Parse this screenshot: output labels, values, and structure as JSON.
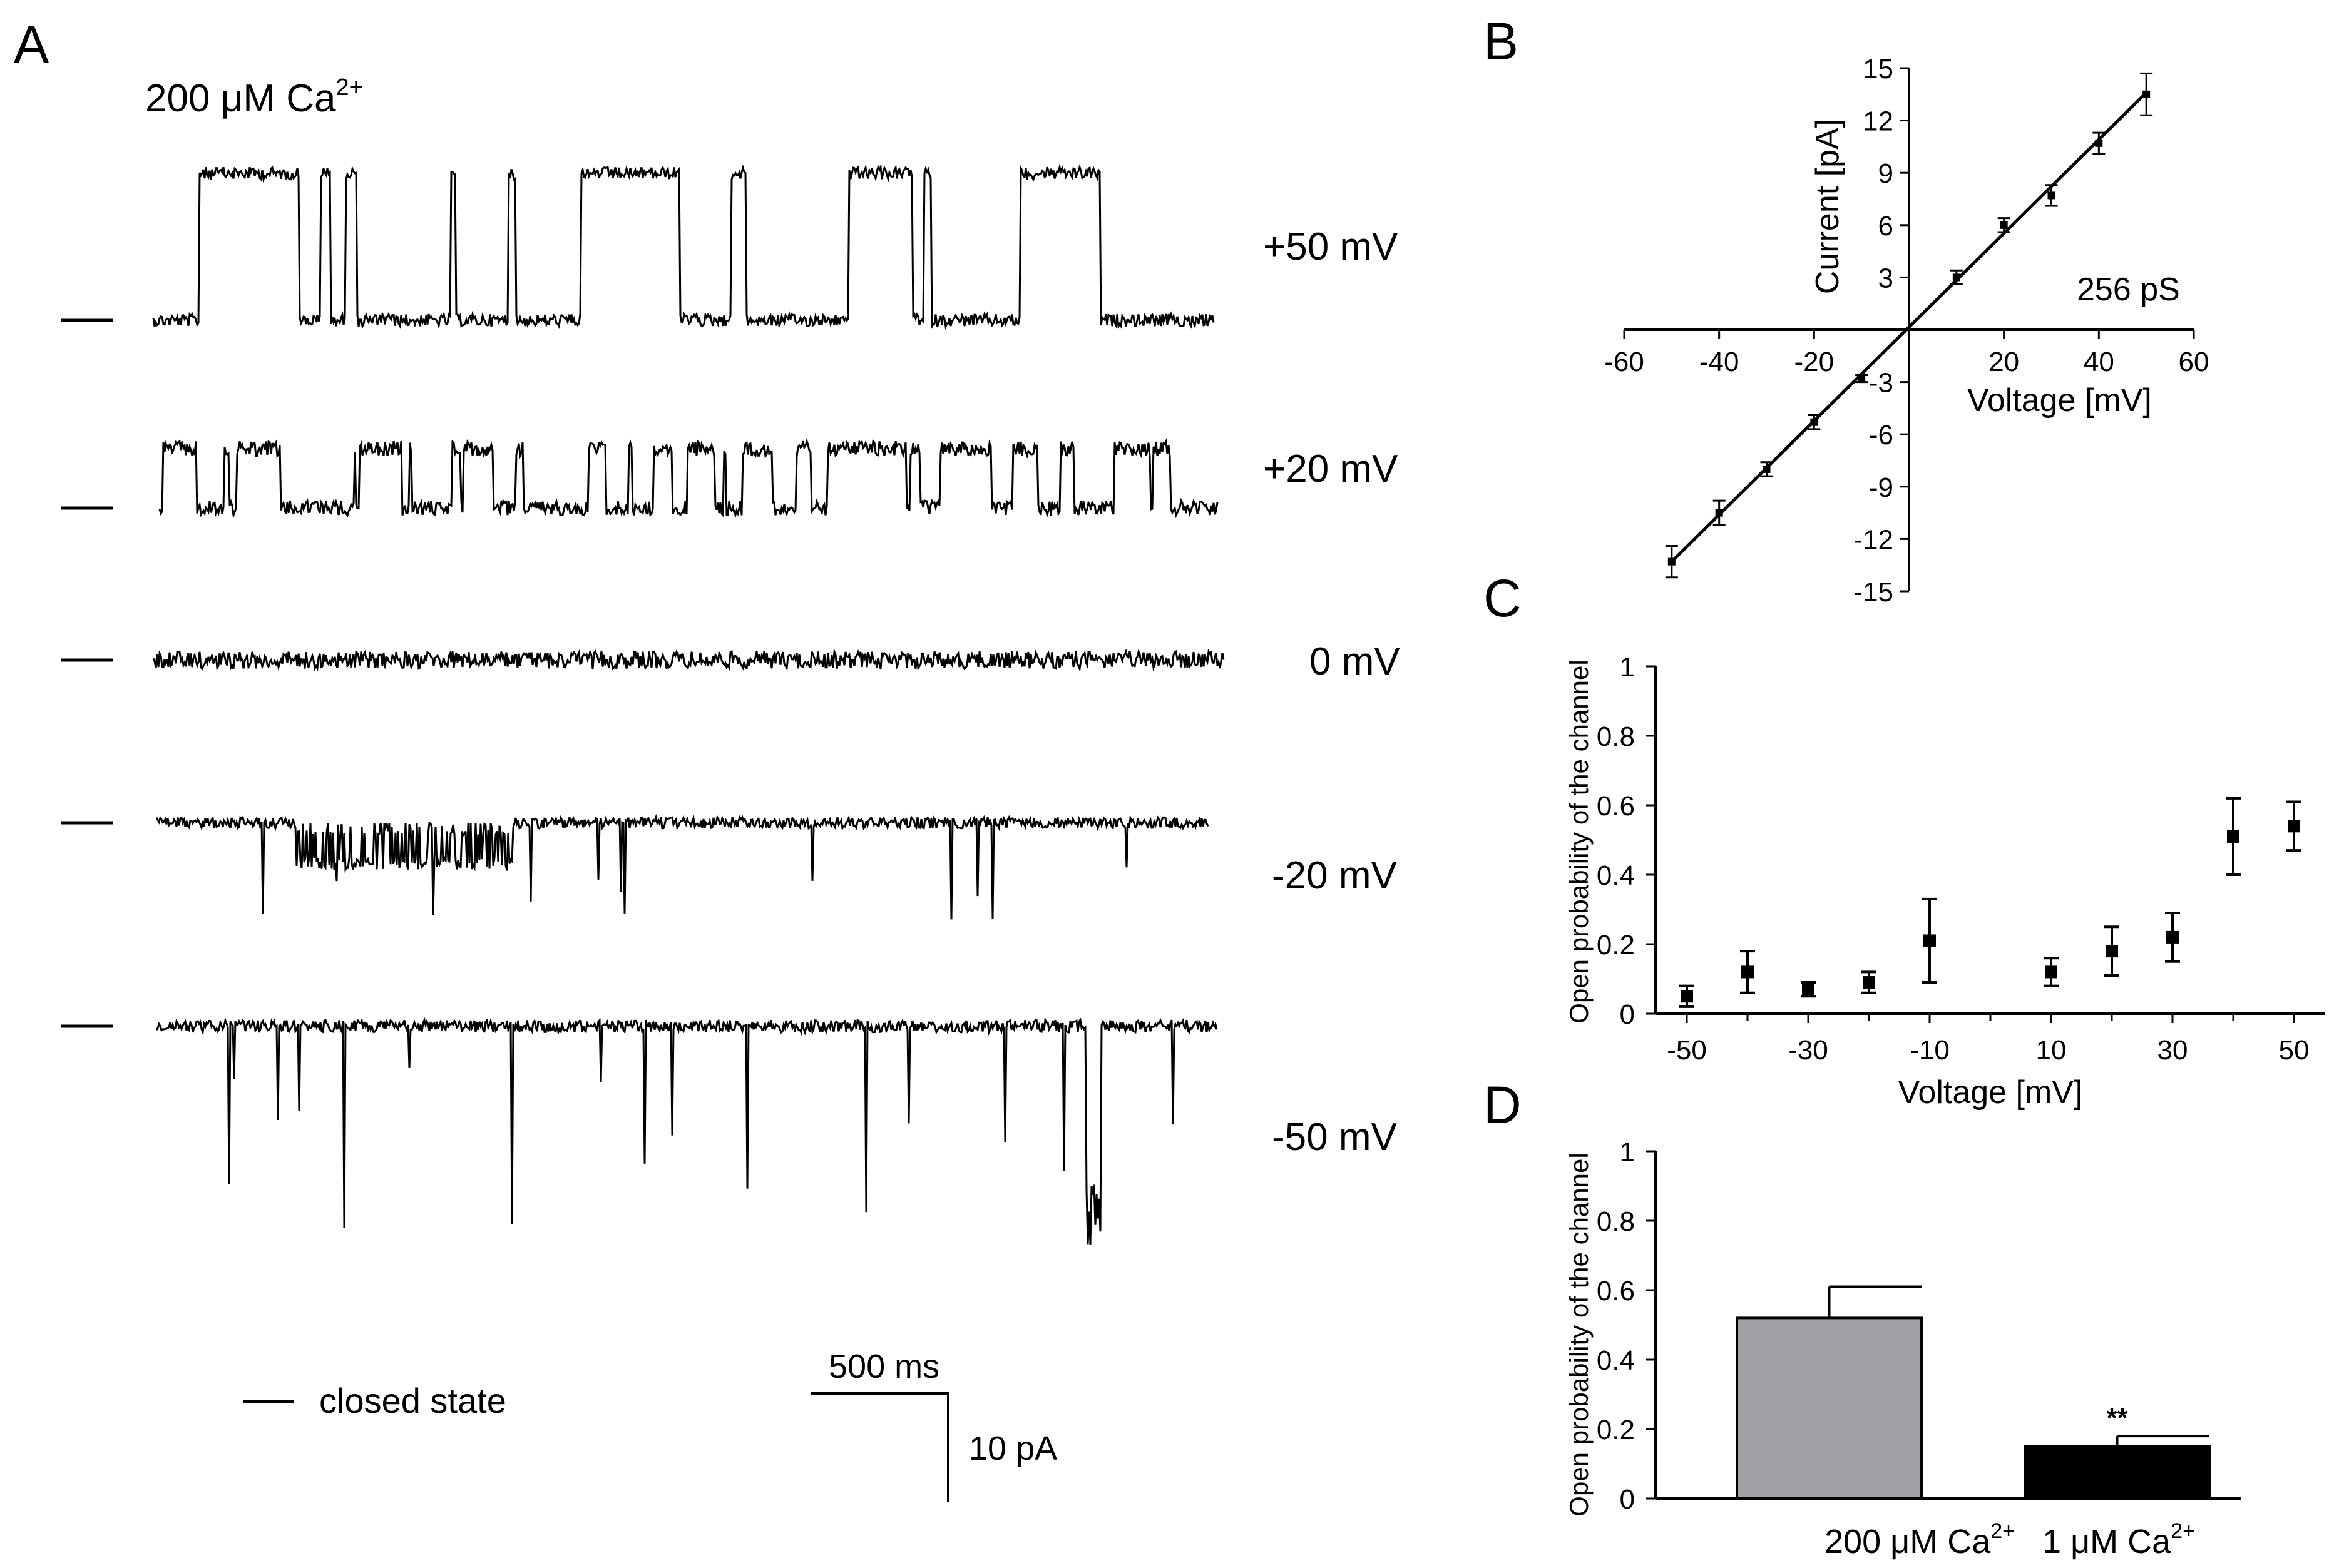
{
  "panel_letters": {
    "a": "A",
    "b": "B",
    "c": "C",
    "d": "D"
  },
  "colors": {
    "ink": "#000000",
    "bar_200uM": "#a0a0a4",
    "bar_1uM": "#000000"
  },
  "chart_data": [
    {
      "panel": "A",
      "type": "line",
      "condition": {
        "prefix": "200 μM Ca",
        "sup": "2+"
      },
      "traces": [
        {
          "voltage_label": "+50 mV",
          "pattern": "openings upward, frequent bursts"
        },
        {
          "voltage_label": "+20 mV",
          "pattern": "openings upward, flickering"
        },
        {
          "voltage_label": "0 mV",
          "pattern": "baseline noise only"
        },
        {
          "voltage_label": "-20 mV",
          "pattern": "sparse downward openings"
        },
        {
          "voltage_label": "-50 mV",
          "pattern": "brief downward openings"
        }
      ],
      "legend": {
        "closed_state": "closed state"
      },
      "scale_bar": {
        "time": "500 ms",
        "current": "10 pA"
      }
    },
    {
      "panel": "B",
      "type": "scatter",
      "xlabel": "Voltage [mV]",
      "ylabel": "Current [pA]",
      "x_ticks": [
        -60,
        -40,
        -20,
        20,
        40,
        60
      ],
      "y_ticks": [
        15,
        12,
        9,
        6,
        3,
        -3,
        -6,
        -9,
        -12,
        -15
      ],
      "xlim": [
        -60,
        60
      ],
      "ylim": [
        -15,
        15
      ],
      "annotation": "256 pS",
      "points": [
        {
          "x": -50,
          "y": -13.3,
          "err": 0.9
        },
        {
          "x": -40,
          "y": -10.5,
          "err": 0.7
        },
        {
          "x": -30,
          "y": -8.0,
          "err": 0.4
        },
        {
          "x": -20,
          "y": -5.3,
          "err": 0.4
        },
        {
          "x": -10,
          "y": -2.8,
          "err": 0.2
        },
        {
          "x": 10,
          "y": 3.0,
          "err": 0.4
        },
        {
          "x": 20,
          "y": 6.0,
          "err": 0.4
        },
        {
          "x": 30,
          "y": 7.7,
          "err": 0.6
        },
        {
          "x": 40,
          "y": 10.7,
          "err": 0.6
        },
        {
          "x": 50,
          "y": 13.5,
          "err": 1.2
        }
      ],
      "fit_line": {
        "x": [
          -50,
          50
        ],
        "y": [
          -13.3,
          13.6
        ]
      }
    },
    {
      "panel": "C",
      "type": "scatter",
      "xlabel": "Voltage [mV]",
      "ylabel": "Open probability of the channel",
      "x_ticks": [
        "-50",
        "-30",
        "-10",
        "10",
        "30",
        "50"
      ],
      "y_ticks": [
        "0",
        "0.2",
        "0.4",
        "0.6",
        "0.8",
        "1"
      ],
      "xlim": [
        -55,
        55
      ],
      "ylim": [
        0,
        1
      ],
      "points": [
        {
          "x": -50,
          "y": 0.05,
          "err": 0.03
        },
        {
          "x": -40,
          "y": 0.12,
          "err": 0.06
        },
        {
          "x": -30,
          "y": 0.07,
          "err": 0.02
        },
        {
          "x": -20,
          "y": 0.09,
          "err": 0.03
        },
        {
          "x": -10,
          "y": 0.21,
          "err": 0.12
        },
        {
          "x": 10,
          "y": 0.12,
          "err": 0.04
        },
        {
          "x": 20,
          "y": 0.18,
          "err": 0.07
        },
        {
          "x": 30,
          "y": 0.22,
          "err": 0.07
        },
        {
          "x": 40,
          "y": 0.51,
          "err": 0.11
        },
        {
          "x": 50,
          "y": 0.54,
          "err": 0.07
        }
      ]
    },
    {
      "panel": "D",
      "type": "bar",
      "ylabel": "Open probability of the channel",
      "y_ticks": [
        "0",
        "0.2",
        "0.4",
        "0.6",
        "0.8",
        "1"
      ],
      "ylim": [
        0,
        1
      ],
      "categories": [
        {
          "prefix": "200 μM Ca",
          "sup": "2+"
        },
        {
          "prefix": "1 μM Ca",
          "sup": "2+"
        }
      ],
      "values": [
        0.52,
        0.15
      ],
      "errors": [
        0.09,
        0.03
      ],
      "significance": [
        "",
        "**"
      ]
    }
  ]
}
